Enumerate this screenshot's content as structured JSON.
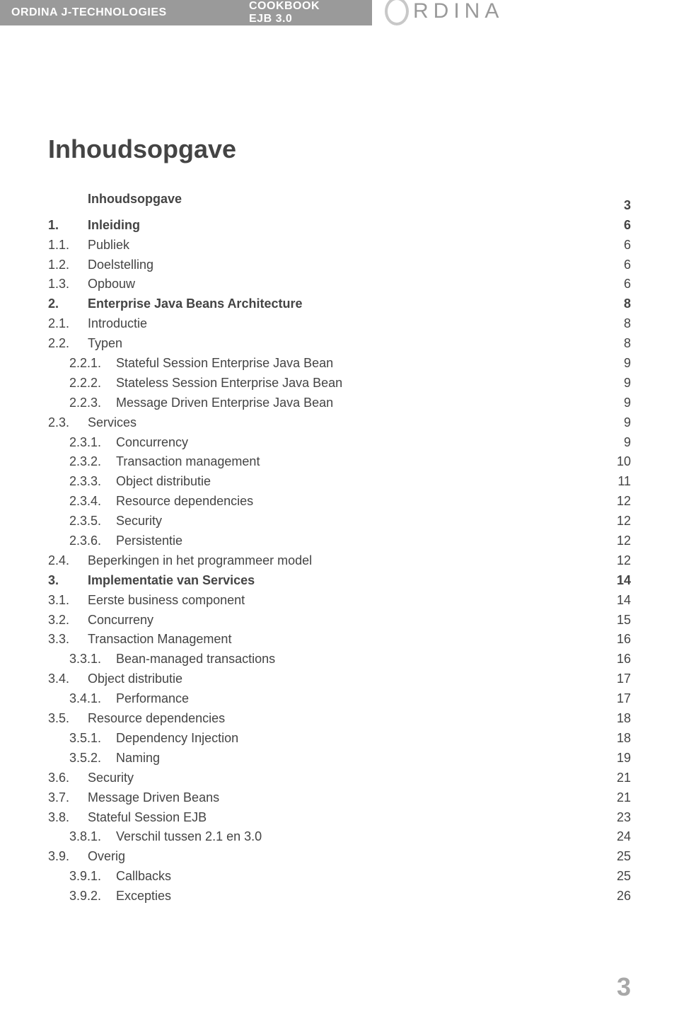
{
  "header": {
    "left": "ORDINA J-TECHNOLOGIES",
    "middle": "COOKBOOK EJB 3.0",
    "logo_text": "RDINA"
  },
  "title": "Inhoudsopgave",
  "toc": [
    {
      "level": 0,
      "bold": true,
      "num": "",
      "text": "Inhoudsopgave",
      "page": "3"
    },
    {
      "level": 0,
      "bold": true,
      "num": "1.",
      "text": "Inleiding",
      "page": "6"
    },
    {
      "level": 1,
      "bold": false,
      "num": "1.1.",
      "text": "Publiek",
      "page": "6"
    },
    {
      "level": 1,
      "bold": false,
      "num": "1.2.",
      "text": "Doelstelling",
      "page": "6"
    },
    {
      "level": 1,
      "bold": false,
      "num": "1.3.",
      "text": "Opbouw",
      "page": "6"
    },
    {
      "level": 0,
      "bold": true,
      "num": "2.",
      "text": "Enterprise Java Beans Architecture",
      "page": "8"
    },
    {
      "level": 1,
      "bold": false,
      "num": "2.1.",
      "text": "Introductie",
      "page": "8"
    },
    {
      "level": 1,
      "bold": false,
      "num": "2.2.",
      "text": "Typen",
      "page": "8"
    },
    {
      "level": 2,
      "bold": false,
      "num": "2.2.1.",
      "text": "Stateful Session Enterprise Java Bean",
      "page": "9"
    },
    {
      "level": 2,
      "bold": false,
      "num": "2.2.2.",
      "text": "Stateless Session Enterprise Java Bean",
      "page": "9"
    },
    {
      "level": 2,
      "bold": false,
      "num": "2.2.3.",
      "text": "Message Driven Enterprise Java Bean",
      "page": "9"
    },
    {
      "level": 1,
      "bold": false,
      "num": "2.3.",
      "text": "Services",
      "page": "9"
    },
    {
      "level": 2,
      "bold": false,
      "num": "2.3.1.",
      "text": "Concurrency",
      "page": "9"
    },
    {
      "level": 2,
      "bold": false,
      "num": "2.3.2.",
      "text": "Transaction management",
      "page": "10"
    },
    {
      "level": 2,
      "bold": false,
      "num": "2.3.3.",
      "text": "Object distributie",
      "page": "11"
    },
    {
      "level": 2,
      "bold": false,
      "num": "2.3.4.",
      "text": "Resource dependencies",
      "page": "12"
    },
    {
      "level": 2,
      "bold": false,
      "num": "2.3.5.",
      "text": "Security",
      "page": "12"
    },
    {
      "level": 2,
      "bold": false,
      "num": "2.3.6.",
      "text": "Persistentie",
      "page": "12"
    },
    {
      "level": 1,
      "bold": false,
      "num": "2.4.",
      "text": "Beperkingen in het programmeer model",
      "page": "12"
    },
    {
      "level": 0,
      "bold": true,
      "num": "3.",
      "text": "Implementatie van Services",
      "page": "14"
    },
    {
      "level": 1,
      "bold": false,
      "num": "3.1.",
      "text": "Eerste business component",
      "page": "14"
    },
    {
      "level": 1,
      "bold": false,
      "num": "3.2.",
      "text": "Concurreny",
      "page": "15"
    },
    {
      "level": 1,
      "bold": false,
      "num": "3.3.",
      "text": "Transaction Management",
      "page": "16"
    },
    {
      "level": 2,
      "bold": false,
      "num": "3.3.1.",
      "text": "Bean-managed transactions",
      "page": "16"
    },
    {
      "level": 1,
      "bold": false,
      "num": "3.4.",
      "text": "Object distributie",
      "page": "17"
    },
    {
      "level": 2,
      "bold": false,
      "num": "3.4.1.",
      "text": "Performance",
      "page": "17"
    },
    {
      "level": 1,
      "bold": false,
      "num": "3.5.",
      "text": "Resource dependencies",
      "page": "18"
    },
    {
      "level": 2,
      "bold": false,
      "num": "3.5.1.",
      "text": "Dependency Injection",
      "page": "18"
    },
    {
      "level": 2,
      "bold": false,
      "num": "3.5.2.",
      "text": "Naming",
      "page": "19"
    },
    {
      "level": 1,
      "bold": false,
      "num": "3.6.",
      "text": "Security",
      "page": "21"
    },
    {
      "level": 1,
      "bold": false,
      "num": "3.7.",
      "text": "Message Driven Beans",
      "page": "21"
    },
    {
      "level": 1,
      "bold": false,
      "num": "3.8.",
      "text": "Stateful Session EJB",
      "page": "23"
    },
    {
      "level": 2,
      "bold": false,
      "num": "3.8.1.",
      "text": "Verschil tussen 2.1 en 3.0",
      "page": "24"
    },
    {
      "level": 1,
      "bold": false,
      "num": "3.9.",
      "text": "Overig",
      "page": "25"
    },
    {
      "level": 2,
      "bold": false,
      "num": "3.9.1.",
      "text": "Callbacks",
      "page": "25"
    },
    {
      "level": 2,
      "bold": false,
      "num": "3.9.2.",
      "text": "Excepties",
      "page": "26"
    }
  ],
  "page_number": "3"
}
